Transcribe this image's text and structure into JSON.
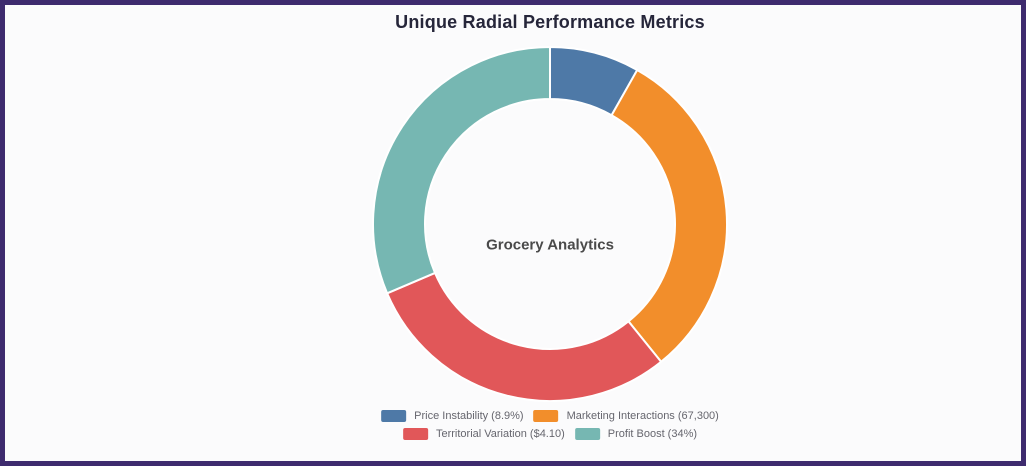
{
  "page": {
    "background_color": "#fbfbfc",
    "border_color": "#3e2b6e"
  },
  "chart_data": {
    "type": "pie",
    "variant": "donut",
    "title": "Unique Radial Performance Metrics",
    "center_label": "Grocery Analytics",
    "legend_position": "bottom",
    "legend_rows": 2,
    "start_angle_deg": 0,
    "inner_radius_ratio": 0.7,
    "segment_gap_color": "#ffffff",
    "segments": [
      {
        "name": "Price Instability",
        "label": "Price Instability (8.9%)",
        "display_value": "8.9%",
        "angular_percent": 8.2,
        "color": "#4e79a7"
      },
      {
        "name": "Marketing Interactions",
        "label": "Marketing Interactions (67,300)",
        "display_value": "67,300",
        "angular_percent": 31.0,
        "color": "#f28e2b"
      },
      {
        "name": "Territorial Variation",
        "label": "Territorial Variation ($4.10)",
        "display_value": "$4.10",
        "angular_percent": 29.4,
        "color": "#e15759"
      },
      {
        "name": "Profit Boost",
        "label": "Profit Boost (34%)",
        "display_value": "34%",
        "angular_percent": 31.4,
        "color": "#76b7b2"
      }
    ]
  }
}
